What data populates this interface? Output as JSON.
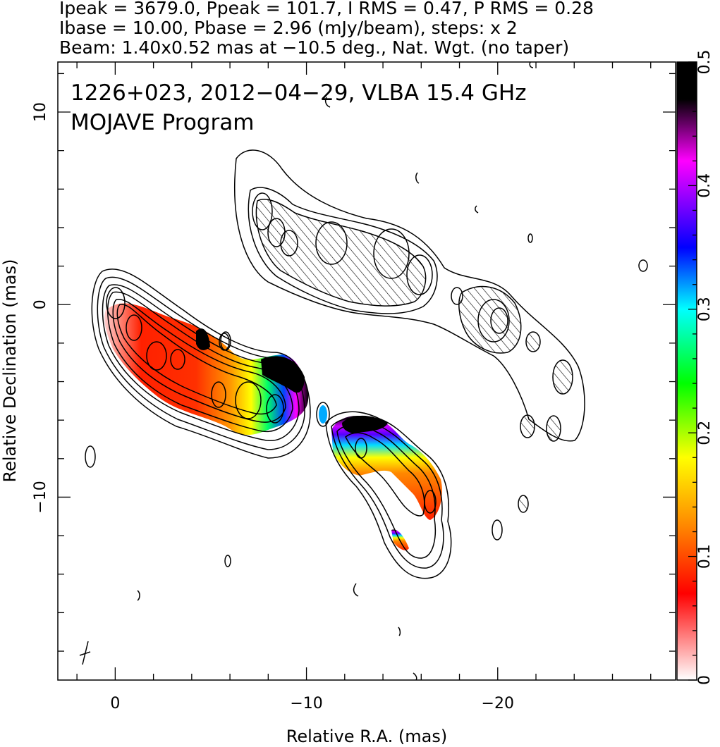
{
  "header": {
    "line1": "Ipeak = 3679.0, Ppeak = 101.7, I RMS = 0.47, P RMS = 0.28",
    "line2": "Ibase = 10.00, Pbase = 2.96 (mJy/beam), steps: x 2",
    "line3": "Beam: 1.40x0.52 mas at −10.5 deg., Nat. Wgt. (no taper)"
  },
  "annotation": {
    "line1": "1226+023, 2012−04−29, VLBA 15.4 GHz",
    "line2": "MOJAVE Program"
  },
  "chart_data": {
    "type": "heatmap",
    "title": "",
    "xlabel": "Relative R.A. (mas)",
    "ylabel": "Relative Declination (mas)",
    "xlim": [
      3,
      -29.3
    ],
    "ylim": [
      -19.5,
      12.6
    ],
    "x_ticks": [
      0,
      -10,
      -20
    ],
    "x_tick_labels": [
      "0",
      "−10",
      "−20"
    ],
    "y_ticks": [
      10,
      0,
      -10
    ],
    "y_tick_labels": [
      "10",
      "0",
      "−10"
    ],
    "x_grid": false,
    "y_grid": false,
    "colorbar": {
      "label": "",
      "range": [
        0,
        0.5
      ],
      "ticks": [
        0,
        0.1,
        0.2,
        0.3,
        0.4,
        0.5
      ],
      "tick_labels": [
        "0",
        "0.1",
        "0.2",
        "0.3",
        "0.4",
        "0.5"
      ],
      "colors": [
        "#ffffff",
        "#ff0000",
        "#ff8800",
        "#ffff00",
        "#00ff00",
        "#00ffff",
        "#0000ff",
        "#ff00ff",
        "#000000"
      ]
    },
    "total_intensity_contours": {
      "base_mJy_per_beam": 10.0,
      "step_factor": 2,
      "peak_mJy_per_beam": 3679.0,
      "rms_mJy_per_beam": 0.47,
      "core_position_mas": [
        0,
        0
      ]
    },
    "polarized_intensity": {
      "base_mJy_per_beam": 2.96,
      "peak_mJy_per_beam": 101.7,
      "rms_mJy_per_beam": 0.28
    },
    "beam": {
      "major_mas": 1.4,
      "minor_mas": 0.52,
      "pa_deg": -10.5,
      "weighting": "Nat. Wgt. (no taper)",
      "position_mas": [
        1.5,
        -18.8
      ]
    },
    "jet_ridge_xy_mas": [
      [
        0,
        0
      ],
      [
        -2.5,
        -3.0
      ],
      [
        -5.8,
        -5.2
      ],
      [
        -8.5,
        -6.5
      ],
      [
        -12.5,
        -7.8
      ],
      [
        -14.8,
        -10.0
      ],
      [
        -16.2,
        -10.8
      ],
      [
        -15.3,
        -13.0
      ],
      [
        -17.2,
        -13.5
      ]
    ],
    "ghost_image_center_mas": [
      -13,
      2
    ]
  }
}
